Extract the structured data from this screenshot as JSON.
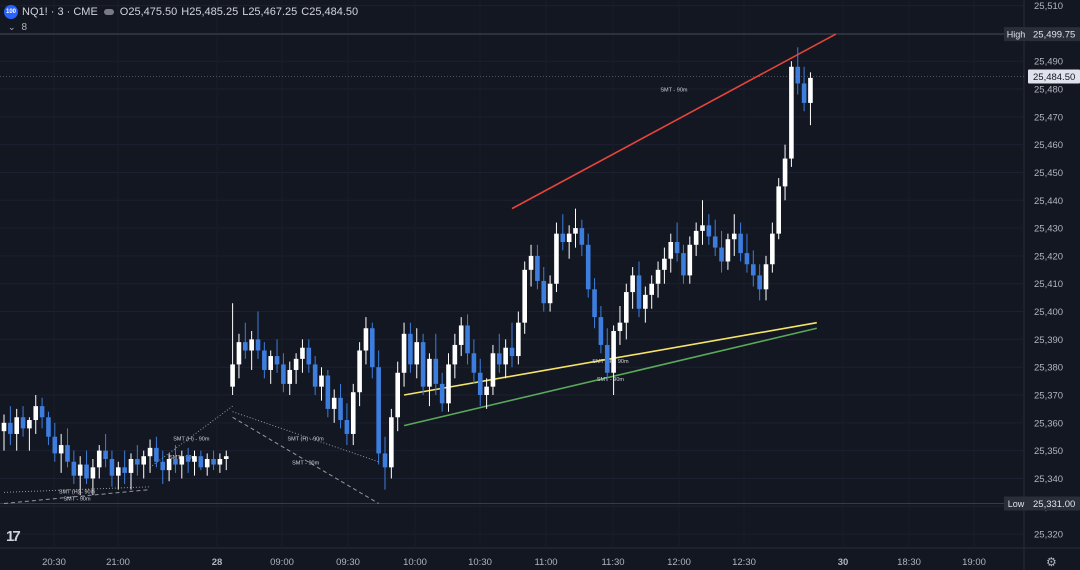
{
  "header": {
    "symbol": "NQ1! · 3 · CME",
    "logo_text": "100",
    "open_label": "O",
    "open": "25,475.50",
    "high_label": "H",
    "high": "25,485.25",
    "low_label": "L",
    "low": "25,467.25",
    "close_label": "C",
    "close": "25,484.50",
    "indicator_count": "8"
  },
  "colors": {
    "background": "#131722",
    "up_candle": "#ffffff",
    "down_candle": "#3d7ddd",
    "smt_red": "#e5443a",
    "smt_yellow": "#f5e46a",
    "smt_green": "#5aa85a",
    "dotted_gray": "#9598a1"
  },
  "chart_data": {
    "type": "candlestick",
    "yaxis_ticks": [
      25320,
      25330,
      25340,
      25350,
      25360,
      25370,
      25380,
      25390,
      25400,
      25410,
      25420,
      25430,
      25440,
      25450,
      25460,
      25470,
      25480,
      25490,
      25500,
      25510
    ],
    "ylim": [
      25315,
      25512
    ],
    "x_ticks": [
      "20:30",
      "21:00",
      "28",
      "09:00",
      "09:30",
      "10:00",
      "10:30",
      "11:00",
      "11:30",
      "12:00",
      "12:30",
      "30",
      "18:30",
      "19:00"
    ],
    "price_labels": [
      {
        "label": "High",
        "value": "25,499.75"
      },
      {
        "label": "",
        "value": "25,484.50"
      },
      {
        "label": "Low",
        "value": "25,331.00"
      }
    ],
    "candles": [
      [
        25357,
        25363,
        25350,
        25360
      ],
      [
        25360,
        25366,
        25352,
        25356
      ],
      [
        25356,
        25365,
        25350,
        25362
      ],
      [
        25362,
        25366,
        25355,
        25358
      ],
      [
        25358,
        25362,
        25350,
        25361
      ],
      [
        25361,
        25370,
        25356,
        25366
      ],
      [
        25366,
        25369,
        25358,
        25362
      ],
      [
        25362,
        25364,
        25352,
        25355
      ],
      [
        25355,
        25360,
        25346,
        25349
      ],
      [
        25349,
        25356,
        25342,
        25352
      ],
      [
        25352,
        25358,
        25344,
        25346
      ],
      [
        25346,
        25350,
        25338,
        25341
      ],
      [
        25341,
        25348,
        25334,
        25345
      ],
      [
        25345,
        25350,
        25338,
        25340
      ],
      [
        25340,
        25347,
        25334,
        25344
      ],
      [
        25344,
        25352,
        25340,
        25350
      ],
      [
        25350,
        25356,
        25344,
        25347
      ],
      [
        25347,
        25350,
        25337,
        25341
      ],
      [
        25341,
        25346,
        25336,
        25344
      ],
      [
        25344,
        25350,
        25338,
        25342
      ],
      [
        25342,
        25349,
        25336,
        25347
      ],
      [
        25347,
        25352,
        25341,
        25345
      ],
      [
        25345,
        25350,
        25340,
        25348
      ],
      [
        25348,
        25354,
        25342,
        25351
      ],
      [
        25351,
        25355,
        25344,
        25346
      ],
      [
        25346,
        25350,
        25338,
        25343
      ],
      [
        25343,
        25349,
        25339,
        25347
      ],
      [
        25347,
        25352,
        25342,
        25345
      ],
      [
        25345,
        25350,
        25340,
        25348
      ],
      [
        25348,
        25351,
        25342,
        25346
      ],
      [
        25346,
        25350,
        25341,
        25348
      ],
      [
        25348,
        25350,
        25343,
        25344
      ],
      [
        25344,
        25349,
        25341,
        25347
      ],
      [
        25347,
        25350,
        25343,
        25345
      ],
      [
        25345,
        25349,
        25342,
        25347
      ],
      [
        25347,
        25350,
        25343,
        25348
      ],
      [
        25373,
        25403,
        25370,
        25381
      ],
      [
        25381,
        25392,
        25376,
        25389
      ],
      [
        25389,
        25396,
        25383,
        25386
      ],
      [
        25386,
        25393,
        25379,
        25390
      ],
      [
        25390,
        25400,
        25383,
        25386
      ],
      [
        25386,
        25389,
        25376,
        25379
      ],
      [
        25379,
        25386,
        25374,
        25384
      ],
      [
        25384,
        25390,
        25378,
        25381
      ],
      [
        25381,
        25385,
        25371,
        25374
      ],
      [
        25374,
        25382,
        25370,
        25379
      ],
      [
        25379,
        25385,
        25374,
        25383
      ],
      [
        25383,
        25390,
        25378,
        25387
      ],
      [
        25387,
        25390,
        25378,
        25381
      ],
      [
        25381,
        25384,
        25370,
        25373
      ],
      [
        25373,
        25380,
        25368,
        25377
      ],
      [
        25377,
        25379,
        25362,
        25365
      ],
      [
        25365,
        25372,
        25360,
        25369
      ],
      [
        25369,
        25374,
        25358,
        25361
      ],
      [
        25361,
        25367,
        25352,
        25356
      ],
      [
        25356,
        25374,
        25352,
        25371
      ],
      [
        25371,
        25389,
        25366,
        25386
      ],
      [
        25386,
        25398,
        25381,
        25394
      ],
      [
        25394,
        25396,
        25376,
        25380
      ],
      [
        25380,
        25386,
        25345,
        25349
      ],
      [
        25349,
        25355,
        25336,
        25344
      ],
      [
        25344,
        25365,
        25340,
        25362
      ],
      [
        25362,
        25382,
        25357,
        25378
      ],
      [
        25378,
        25396,
        25373,
        25392
      ],
      [
        25392,
        25396,
        25378,
        25381
      ],
      [
        25381,
        25394,
        25376,
        25389
      ],
      [
        25389,
        25392,
        25370,
        25373
      ],
      [
        25373,
        25385,
        25366,
        25383
      ],
      [
        25383,
        25392,
        25370,
        25374
      ],
      [
        25374,
        25378,
        25364,
        25367
      ],
      [
        25367,
        25385,
        25364,
        25381
      ],
      [
        25381,
        25392,
        25376,
        25388
      ],
      [
        25388,
        25398,
        25384,
        25395
      ],
      [
        25395,
        25399,
        25381,
        25385
      ],
      [
        25385,
        25390,
        25374,
        25378
      ],
      [
        25378,
        25383,
        25366,
        25370
      ],
      [
        25370,
        25376,
        25365,
        25373
      ],
      [
        25373,
        25388,
        25370,
        25385
      ],
      [
        25385,
        25392,
        25378,
        25381
      ],
      [
        25381,
        25390,
        25376,
        25387
      ],
      [
        25387,
        25396,
        25380,
        25384
      ],
      [
        25384,
        25400,
        25381,
        25396
      ],
      [
        25396,
        25418,
        25392,
        25415
      ],
      [
        25415,
        25424,
        25409,
        25420
      ],
      [
        25420,
        25424,
        25408,
        25411
      ],
      [
        25411,
        25416,
        25400,
        25403
      ],
      [
        25403,
        25413,
        25400,
        25410
      ],
      [
        25410,
        25432,
        25407,
        25428
      ],
      [
        25428,
        25435,
        25422,
        25425
      ],
      [
        25425,
        25431,
        25419,
        25428
      ],
      [
        25428,
        25437,
        25423,
        25430
      ],
      [
        25430,
        25433,
        25420,
        25424
      ],
      [
        25424,
        25428,
        25405,
        25408
      ],
      [
        25408,
        25412,
        25394,
        25398
      ],
      [
        25398,
        25402,
        25385,
        25388
      ],
      [
        25388,
        25394,
        25375,
        25378
      ],
      [
        25378,
        25395,
        25370,
        25393
      ],
      [
        25393,
        25402,
        25388,
        25396
      ],
      [
        25396,
        25410,
        25390,
        25407
      ],
      [
        25407,
        25416,
        25401,
        25413
      ],
      [
        25413,
        25418,
        25398,
        25401
      ],
      [
        25401,
        25409,
        25396,
        25406
      ],
      [
        25406,
        25413,
        25401,
        25410
      ],
      [
        25410,
        25418,
        25405,
        25415
      ],
      [
        25415,
        25423,
        25410,
        25419
      ],
      [
        25419,
        25428,
        25414,
        25425
      ],
      [
        25425,
        25432,
        25418,
        25421
      ],
      [
        25421,
        25424,
        25410,
        25413
      ],
      [
        25413,
        25427,
        25410,
        25424
      ],
      [
        25424,
        25432,
        25420,
        25429
      ],
      [
        25429,
        25440,
        25424,
        25431
      ],
      [
        25431,
        25435,
        25424,
        25427
      ],
      [
        25427,
        25433,
        25420,
        25423
      ],
      [
        25423,
        25429,
        25414,
        25418
      ],
      [
        25418,
        25428,
        25415,
        25426
      ],
      [
        25426,
        25435,
        25420,
        25428
      ],
      [
        25428,
        25432,
        25418,
        25421
      ],
      [
        25421,
        25428,
        25414,
        25417
      ],
      [
        25417,
        25422,
        25409,
        25413
      ],
      [
        25413,
        25417,
        25404,
        25408
      ],
      [
        25408,
        25420,
        25404,
        25417
      ],
      [
        25417,
        25432,
        25414,
        25428
      ],
      [
        25428,
        25448,
        25426,
        25445
      ],
      [
        25445,
        25460,
        25440,
        25455
      ],
      [
        25455,
        25490,
        25452,
        25488
      ],
      [
        25488,
        25495,
        25478,
        25482
      ],
      [
        25482,
        25488,
        25472,
        25475
      ],
      [
        25475,
        25486,
        25467,
        25484
      ]
    ],
    "annotations": [
      {
        "type": "line",
        "color": "smt_red",
        "from": [
          80,
          25437
        ],
        "to": [
          131,
          25499.75
        ],
        "label": "SMT - 90m"
      },
      {
        "type": "line",
        "color": "smt_yellow",
        "from": [
          63,
          25370
        ],
        "to": [
          128,
          25396
        ],
        "label": "SMT (H) - 90m"
      },
      {
        "type": "line",
        "color": "smt_green",
        "from": [
          63,
          25359
        ],
        "to": [
          128,
          25394
        ],
        "label": "SMT - 90m"
      },
      {
        "type": "dotted",
        "from": [
          36,
          25366
        ],
        "to": [
          23,
          25344
        ],
        "label": "SMT (H) - 90m"
      },
      {
        "type": "dotted",
        "from": [
          36,
          25364
        ],
        "to": [
          59,
          25346
        ],
        "label": "SMT (H) - 90m"
      },
      {
        "type": "dashed",
        "from": [
          36,
          25362
        ],
        "to": [
          59,
          25331
        ],
        "label": "SMT - 90m"
      },
      {
        "type": "dotted",
        "from": [
          0,
          25335
        ],
        "to": [
          23,
          25337
        ],
        "label": "SMT (H) - 90m"
      },
      {
        "type": "dashed",
        "from": [
          0,
          25331
        ],
        "to": [
          23,
          25336
        ],
        "label": "SMT - 90m"
      },
      {
        "type": "text",
        "at": [
          26,
          25347
        ],
        "label": "SMT - 90m"
      }
    ]
  }
}
